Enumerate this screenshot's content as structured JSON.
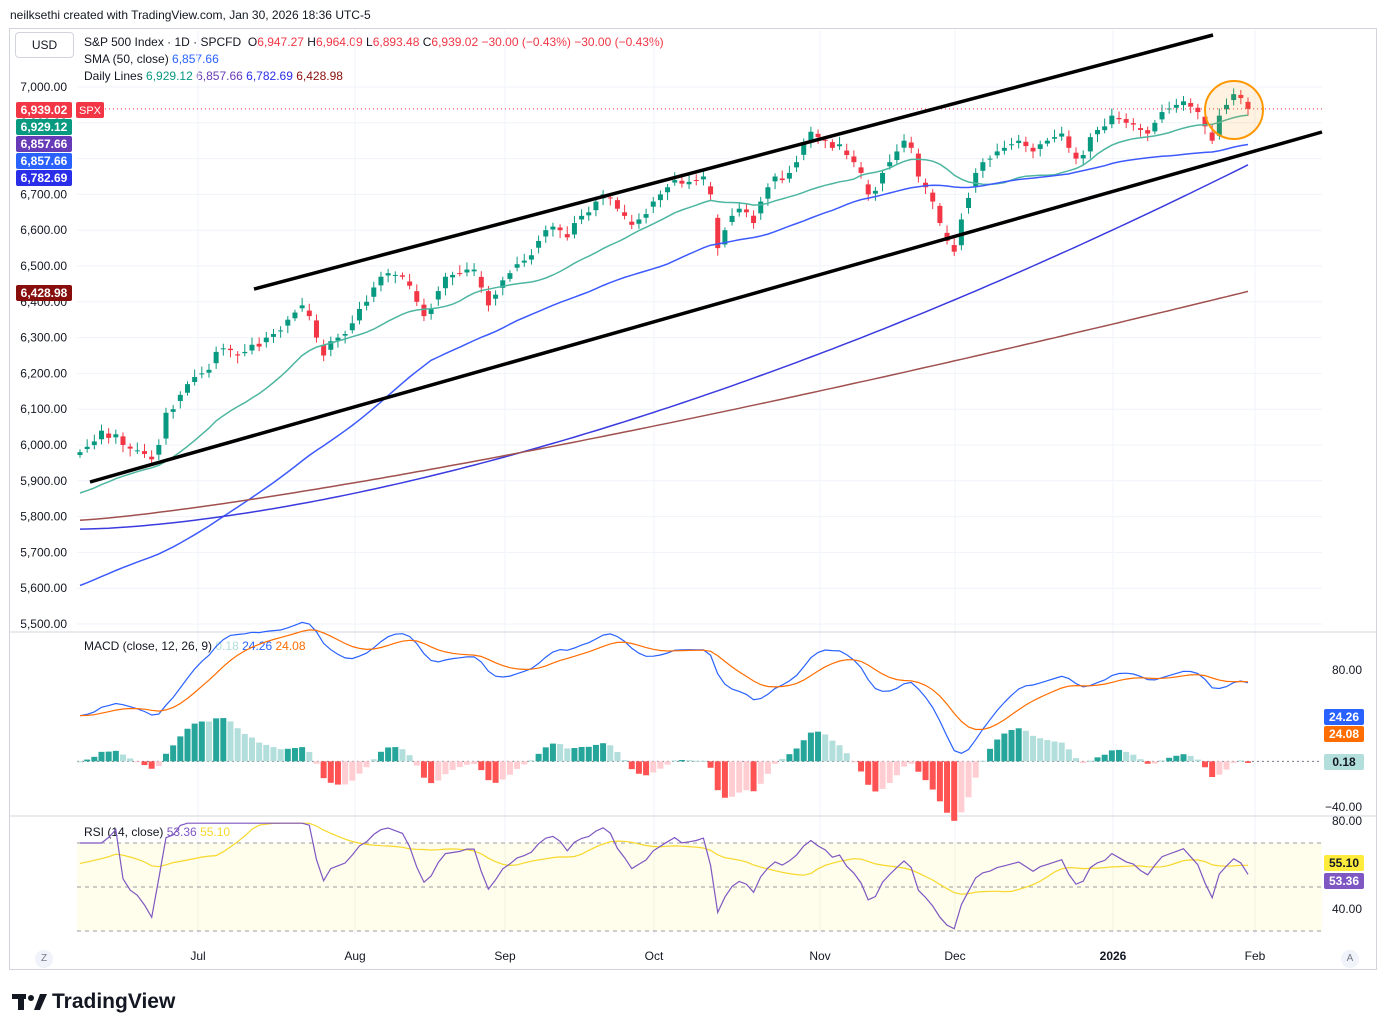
{
  "header": {
    "text": "neilksethi created with TradingView.com, Jan 30, 2026 18:36 UTC-5"
  },
  "currency_button": "USD",
  "legend": {
    "symbol_title": "S&P 500 Index · 1D · SPCFD",
    "ohlc": {
      "o_label": "O",
      "o": "6,947.27",
      "h_label": "H",
      "h": "6,964.09",
      "l_label": "L",
      "l": "6,893.48",
      "c_label": "C",
      "c": "6,939.02",
      "change": "−30.00 (−0.43%)",
      "change2": "−30.00 (−0.43%)"
    },
    "sma_label": "SMA (50, close)",
    "sma_value": "6,857.66",
    "daily_label": "Daily Lines",
    "daily_values": [
      "6,929.12",
      "6,857.66",
      "6,782.69",
      "6,428.98"
    ]
  },
  "macd_legend": {
    "label": "MACD (close, 12, 26, 9)",
    "v1": "0.18",
    "v2": "24.26",
    "v3": "24.08"
  },
  "rsi_legend": {
    "label": "RSI (14, close)",
    "v1": "53.36",
    "v2": "55.10"
  },
  "price_axis": [
    "7,000.00",
    "6,900.00",
    "6,800.00",
    "6,700.00",
    "6,600.00",
    "6,500.00",
    "6,400.00",
    "6,300.00",
    "6,200.00",
    "6,100.00",
    "6,000.00",
    "5,900.00",
    "5,800.00",
    "5,700.00",
    "5,600.00",
    "5,500.00"
  ],
  "price_badges": [
    {
      "text": "6,939.02",
      "color": "#f23645",
      "extra": "SPX"
    },
    {
      "text": "6,929.12",
      "color": "#089981"
    },
    {
      "text": "6,857.66",
      "color": "#673ab7"
    },
    {
      "text": "6,857.66",
      "color": "#2962ff"
    },
    {
      "text": "6,782.69",
      "color": "#2a2ee8"
    },
    {
      "text": "6,428.98",
      "color": "#880e0e"
    }
  ],
  "macd_axis": [
    "80.00",
    "−40.00"
  ],
  "macd_badges": [
    {
      "text": "24.26",
      "color": "#2962ff"
    },
    {
      "text": "24.08",
      "color": "#ff6d00"
    },
    {
      "text": "0.18",
      "color": "#b2dfdb",
      "dark": true
    }
  ],
  "rsi_axis": [
    "80.00",
    "40.00"
  ],
  "rsi_badges": [
    {
      "text": "55.10",
      "color": "#ffeb3b",
      "dark": true
    },
    {
      "text": "53.36",
      "color": "#7e57c2"
    }
  ],
  "time_axis": [
    "Jul",
    "Aug",
    "Sep",
    "Oct",
    "Nov",
    "Dec",
    "2026",
    "Feb"
  ],
  "footer": {
    "logo_text": "TradingView",
    "z_label": "Z",
    "a_label": "A"
  },
  "colors": {
    "up": "#089981",
    "down": "#f23645",
    "sma20": "#4db6a0",
    "sma50": "#3d5afe",
    "sma100": "#3a3adf",
    "sma200": "#a0504f",
    "macd": "#2962ff",
    "signal": "#ff6d00",
    "rsi": "#7e57c2",
    "rsi_ma": "#f7d82a"
  },
  "chart_data": {
    "type": "candlestick",
    "symbol": "S&P 500 Index · 1D · SPCFD",
    "ylim": [
      5500,
      7050
    ],
    "close_approx": [
      5980,
      5995,
      6010,
      6040,
      6020,
      6030,
      6000,
      5990,
      5985,
      5975,
      5960,
      6000,
      6090,
      6100,
      6140,
      6170,
      6190,
      6200,
      6210,
      6260,
      6270,
      6265,
      6250,
      6260,
      6280,
      6275,
      6300,
      6310,
      6320,
      6350,
      6370,
      6390,
      6360,
      6300,
      6250,
      6290,
      6300,
      6310,
      6340,
      6380,
      6400,
      6440,
      6470,
      6480,
      6475,
      6470,
      6445,
      6400,
      6360,
      6380,
      6430,
      6470,
      6475,
      6480,
      6490,
      6490,
      6440,
      6390,
      6420,
      6460,
      6480,
      6505,
      6515,
      6530,
      6570,
      6600,
      6610,
      6600,
      6580,
      6620,
      6640,
      6650,
      6680,
      6700,
      6690,
      6660,
      6640,
      6615,
      6630,
      6645,
      6680,
      6700,
      6720,
      6740,
      6730,
      6735,
      6740,
      6750,
      6700,
      6550,
      6600,
      6640,
      6660,
      6650,
      6620,
      6680,
      6720,
      6750,
      6740,
      6760,
      6790,
      6840,
      6875,
      6860,
      6850,
      6830,
      6840,
      6810,
      6790,
      6760,
      6700,
      6710,
      6760,
      6790,
      6820,
      6850,
      6830,
      6750,
      6720,
      6680,
      6620,
      6570,
      6540,
      6630,
      6690,
      6760,
      6790,
      6800,
      6820,
      6830,
      6840,
      6850,
      6835,
      6820,
      6840,
      6850,
      6860,
      6870,
      6830,
      6800,
      6810,
      6860,
      6880,
      6890,
      6920,
      6910,
      6900,
      6895,
      6880,
      6870,
      6900,
      6930,
      6940,
      6950,
      6960,
      6945,
      6930,
      6890,
      6850,
      6920,
      6950,
      6980,
      6969,
      6939
    ],
    "moving_averages": [
      {
        "name": "SMA 20",
        "last": 6929.12
      },
      {
        "name": "SMA 50",
        "last": 6857.66
      },
      {
        "name": "SMA 100",
        "last": 6782.69
      },
      {
        "name": "SMA 200",
        "last": 6428.98
      }
    ],
    "trend_channel": {
      "upper_start": 6440,
      "upper_end": 7200,
      "lower_start": 5900,
      "lower_end": 6880
    },
    "macd": {
      "macd": 24.26,
      "signal": 24.08,
      "histogram": 0.18,
      "ylim": [
        -40,
        80
      ]
    },
    "rsi": {
      "value": 53.36,
      "ma": 55.1,
      "ylim": [
        30,
        80
      ],
      "bands": [
        30,
        70
      ]
    },
    "x_labels": [
      "Jul",
      "Aug",
      "Sep",
      "Oct",
      "Nov",
      "Dec",
      "2026",
      "Feb"
    ]
  }
}
